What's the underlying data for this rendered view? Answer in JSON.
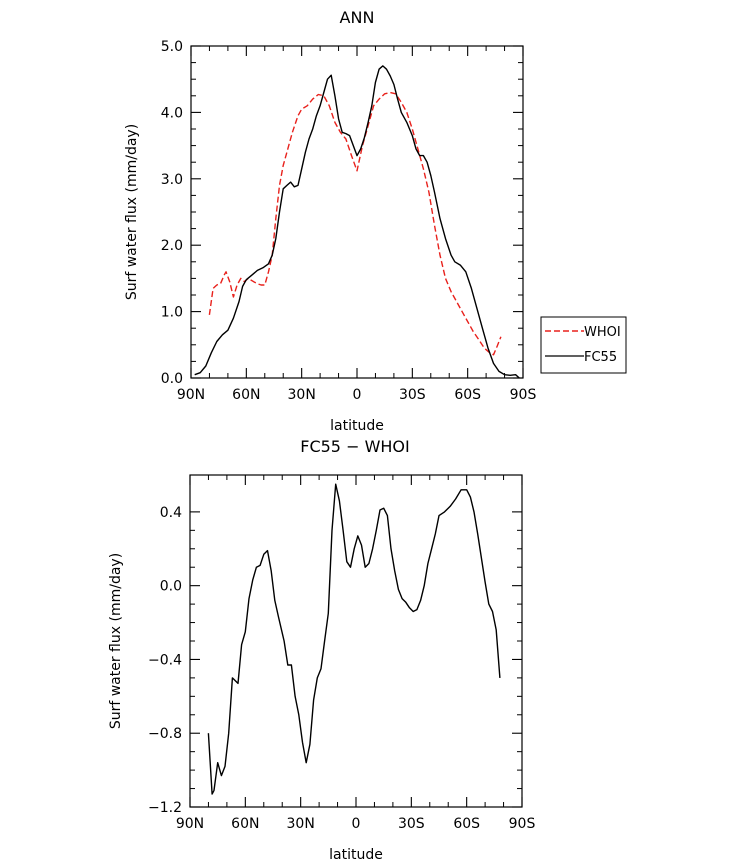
{
  "chart_data": [
    {
      "type": "line",
      "title": "ANN",
      "xlabel": "latitude",
      "ylabel": "Surf water flux (mm/day)",
      "xlim": [
        90,
        -90
      ],
      "ylim": [
        0.0,
        5.0
      ],
      "x_ticks": [
        {
          "value": 90,
          "label": "90N"
        },
        {
          "value": 60,
          "label": "60N"
        },
        {
          "value": 30,
          "label": "30N"
        },
        {
          "value": 0,
          "label": "0"
        },
        {
          "value": -30,
          "label": "30S"
        },
        {
          "value": -60,
          "label": "60S"
        },
        {
          "value": -90,
          "label": "90S"
        }
      ],
      "y_ticks": [
        {
          "value": 0.0,
          "label": "0.0"
        },
        {
          "value": 1.0,
          "label": "1.0"
        },
        {
          "value": 2.0,
          "label": "2.0"
        },
        {
          "value": 3.0,
          "label": "3.0"
        },
        {
          "value": 4.0,
          "label": "4.0"
        },
        {
          "value": 5.0,
          "label": "5.0"
        }
      ],
      "legend": {
        "position": "right",
        "entries": [
          "WHOI",
          "FC55"
        ]
      },
      "grid": false,
      "series": [
        {
          "name": "WHOI",
          "color": "#e8211c",
          "dash": "dashed",
          "points": [
            [
              80,
              0.95
            ],
            [
              78,
              1.35
            ],
            [
              76,
              1.4
            ],
            [
              74,
              1.42
            ],
            [
              72,
              1.55
            ],
            [
              71,
              1.6
            ],
            [
              69,
              1.45
            ],
            [
              67,
              1.22
            ],
            [
              65,
              1.4
            ],
            [
              63,
              1.5
            ],
            [
              61,
              1.45
            ],
            [
              59,
              1.5
            ],
            [
              56,
              1.45
            ],
            [
              54,
              1.42
            ],
            [
              52,
              1.4
            ],
            [
              50,
              1.4
            ],
            [
              48,
              1.6
            ],
            [
              46,
              1.85
            ],
            [
              44,
              2.4
            ],
            [
              42,
              2.9
            ],
            [
              40,
              3.2
            ],
            [
              38,
              3.4
            ],
            [
              35,
              3.7
            ],
            [
              32,
              3.95
            ],
            [
              30,
              4.05
            ],
            [
              27,
              4.1
            ],
            [
              24,
              4.2
            ],
            [
              21,
              4.27
            ],
            [
              18,
              4.25
            ],
            [
              15,
              4.1
            ],
            [
              12,
              3.85
            ],
            [
              9,
              3.7
            ],
            [
              6,
              3.6
            ],
            [
              3,
              3.35
            ],
            [
              0,
              3.12
            ],
            [
              -3,
              3.5
            ],
            [
              -6,
              3.8
            ],
            [
              -9,
              4.1
            ],
            [
              -12,
              4.2
            ],
            [
              -15,
              4.28
            ],
            [
              -18,
              4.3
            ],
            [
              -21,
              4.28
            ],
            [
              -24,
              4.15
            ],
            [
              -27,
              4.0
            ],
            [
              -30,
              3.75
            ],
            [
              -33,
              3.45
            ],
            [
              -36,
              3.15
            ],
            [
              -39,
              2.8
            ],
            [
              -42,
              2.3
            ],
            [
              -45,
              1.85
            ],
            [
              -48,
              1.5
            ],
            [
              -51,
              1.3
            ],
            [
              -54,
              1.15
            ],
            [
              -57,
              1.0
            ],
            [
              -60,
              0.85
            ],
            [
              -63,
              0.7
            ],
            [
              -66,
              0.58
            ],
            [
              -69,
              0.45
            ],
            [
              -72,
              0.38
            ],
            [
              -74,
              0.35
            ],
            [
              -76,
              0.48
            ],
            [
              -78,
              0.62
            ]
          ]
        },
        {
          "name": "FC55",
          "color": "#000000",
          "dash": "solid",
          "points": [
            [
              88,
              0.05
            ],
            [
              85,
              0.08
            ],
            [
              82,
              0.18
            ],
            [
              79,
              0.38
            ],
            [
              76,
              0.55
            ],
            [
              73,
              0.65
            ],
            [
              70,
              0.72
            ],
            [
              67,
              0.9
            ],
            [
              64,
              1.15
            ],
            [
              62,
              1.38
            ],
            [
              60,
              1.48
            ],
            [
              57,
              1.55
            ],
            [
              54,
              1.62
            ],
            [
              51,
              1.66
            ],
            [
              48,
              1.72
            ],
            [
              46,
              1.85
            ],
            [
              44,
              2.1
            ],
            [
              42,
              2.5
            ],
            [
              40,
              2.85
            ],
            [
              38,
              2.9
            ],
            [
              36,
              2.95
            ],
            [
              34,
              2.88
            ],
            [
              32,
              2.9
            ],
            [
              30,
              3.15
            ],
            [
              28,
              3.4
            ],
            [
              26,
              3.6
            ],
            [
              24,
              3.75
            ],
            [
              22,
              3.95
            ],
            [
              20,
              4.1
            ],
            [
              18,
              4.3
            ],
            [
              16,
              4.5
            ],
            [
              14,
              4.56
            ],
            [
              12,
              4.25
            ],
            [
              10,
              3.9
            ],
            [
              8,
              3.7
            ],
            [
              6,
              3.68
            ],
            [
              4,
              3.65
            ],
            [
              2,
              3.5
            ],
            [
              0,
              3.35
            ],
            [
              -2,
              3.45
            ],
            [
              -4,
              3.62
            ],
            [
              -6,
              3.85
            ],
            [
              -8,
              4.1
            ],
            [
              -10,
              4.45
            ],
            [
              -12,
              4.65
            ],
            [
              -14,
              4.7
            ],
            [
              -16,
              4.65
            ],
            [
              -18,
              4.55
            ],
            [
              -20,
              4.42
            ],
            [
              -22,
              4.2
            ],
            [
              -24,
              4.0
            ],
            [
              -27,
              3.85
            ],
            [
              -30,
              3.65
            ],
            [
              -32,
              3.45
            ],
            [
              -34,
              3.35
            ],
            [
              -36,
              3.35
            ],
            [
              -38,
              3.25
            ],
            [
              -40,
              3.05
            ],
            [
              -42,
              2.8
            ],
            [
              -45,
              2.4
            ],
            [
              -48,
              2.1
            ],
            [
              -51,
              1.85
            ],
            [
              -53,
              1.75
            ],
            [
              -56,
              1.7
            ],
            [
              -59,
              1.6
            ],
            [
              -62,
              1.35
            ],
            [
              -65,
              1.05
            ],
            [
              -68,
              0.75
            ],
            [
              -71,
              0.45
            ],
            [
              -74,
              0.22
            ],
            [
              -77,
              0.1
            ],
            [
              -80,
              0.05
            ],
            [
              -83,
              0.04
            ],
            [
              -86,
              0.05
            ],
            [
              -88,
              0.0
            ]
          ]
        }
      ]
    },
    {
      "type": "line",
      "title": "FC55 − WHOI",
      "xlabel": "latitude",
      "ylabel": "Surf water flux (mm/day)",
      "xlim": [
        90,
        -90
      ],
      "ylim": [
        -1.2,
        0.6
      ],
      "x_ticks": [
        {
          "value": 90,
          "label": "90N"
        },
        {
          "value": 60,
          "label": "60N"
        },
        {
          "value": 30,
          "label": "30N"
        },
        {
          "value": 0,
          "label": "0"
        },
        {
          "value": -30,
          "label": "30S"
        },
        {
          "value": -60,
          "label": "60S"
        },
        {
          "value": -90,
          "label": "90S"
        }
      ],
      "y_ticks": [
        {
          "value": -1.2,
          "label": "−1.2"
        },
        {
          "value": -0.8,
          "label": "−0.8"
        },
        {
          "value": -0.4,
          "label": "−0.4"
        },
        {
          "value": 0.0,
          "label": "0.0"
        },
        {
          "value": 0.4,
          "label": "0.4"
        }
      ],
      "grid": false,
      "series": [
        {
          "color": "#000000",
          "dash": "solid",
          "points": [
            [
              80,
              -0.8
            ],
            [
              78,
              -1.13
            ],
            [
              77,
              -1.11
            ],
            [
              75,
              -0.96
            ],
            [
              73,
              -1.03
            ],
            [
              71,
              -0.98
            ],
            [
              69,
              -0.8
            ],
            [
              67,
              -0.5
            ],
            [
              64,
              -0.53
            ],
            [
              62,
              -0.32
            ],
            [
              60,
              -0.25
            ],
            [
              58,
              -0.07
            ],
            [
              56,
              0.03
            ],
            [
              54,
              0.1
            ],
            [
              52,
              0.11
            ],
            [
              50,
              0.17
            ],
            [
              48,
              0.19
            ],
            [
              46,
              0.08
            ],
            [
              44,
              -0.08
            ],
            [
              42,
              -0.17
            ],
            [
              39,
              -0.3
            ],
            [
              37,
              -0.43
            ],
            [
              35,
              -0.43
            ],
            [
              33,
              -0.6
            ],
            [
              31,
              -0.7
            ],
            [
              29,
              -0.85
            ],
            [
              27,
              -0.96
            ],
            [
              25,
              -0.86
            ],
            [
              23,
              -0.62
            ],
            [
              21,
              -0.5
            ],
            [
              19,
              -0.45
            ],
            [
              17,
              -0.3
            ],
            [
              15,
              -0.15
            ],
            [
              13,
              0.3
            ],
            [
              11,
              0.55
            ],
            [
              9,
              0.46
            ],
            [
              7,
              0.3
            ],
            [
              5,
              0.13
            ],
            [
              3,
              0.1
            ],
            [
              1,
              0.2
            ],
            [
              -1,
              0.27
            ],
            [
              -3,
              0.22
            ],
            [
              -5,
              0.1
            ],
            [
              -7,
              0.12
            ],
            [
              -9,
              0.2
            ],
            [
              -11,
              0.3
            ],
            [
              -13,
              0.41
            ],
            [
              -15,
              0.42
            ],
            [
              -17,
              0.38
            ],
            [
              -19,
              0.2
            ],
            [
              -21,
              0.08
            ],
            [
              -23,
              -0.02
            ],
            [
              -25,
              -0.07
            ],
            [
              -27,
              -0.09
            ],
            [
              -29,
              -0.12
            ],
            [
              -31,
              -0.14
            ],
            [
              -33,
              -0.13
            ],
            [
              -35,
              -0.08
            ],
            [
              -37,
              0.0
            ],
            [
              -39,
              0.12
            ],
            [
              -41,
              0.2
            ],
            [
              -43,
              0.28
            ],
            [
              -45,
              0.38
            ],
            [
              -48,
              0.4
            ],
            [
              -51,
              0.43
            ],
            [
              -54,
              0.47
            ],
            [
              -57,
              0.52
            ],
            [
              -60,
              0.52
            ],
            [
              -62,
              0.48
            ],
            [
              -64,
              0.4
            ],
            [
              -66,
              0.28
            ],
            [
              -68,
              0.15
            ],
            [
              -70,
              0.02
            ],
            [
              -72,
              -0.1
            ],
            [
              -74,
              -0.14
            ],
            [
              -76,
              -0.24
            ],
            [
              -78,
              -0.5
            ]
          ]
        }
      ]
    }
  ]
}
